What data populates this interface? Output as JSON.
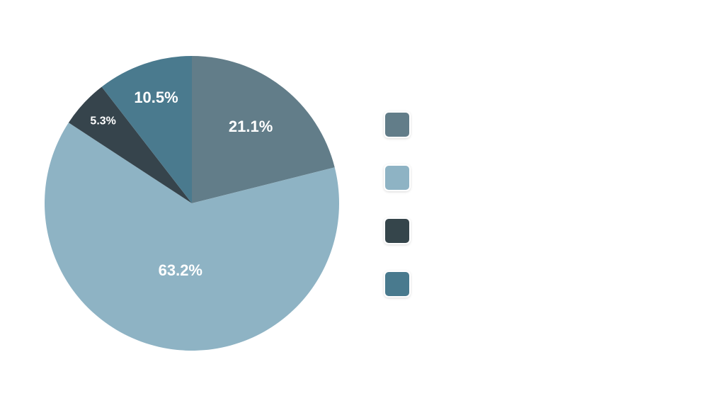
{
  "chart_data": {
    "type": "pie",
    "values": [
      21.1,
      63.2,
      5.3,
      10.5
    ],
    "value_labels": [
      "21.1%",
      "63.2%",
      "5.3%",
      "10.5%"
    ],
    "colors": [
      "#627d89",
      "#8eb3c4",
      "#36444c",
      "#4a7a8e"
    ]
  }
}
